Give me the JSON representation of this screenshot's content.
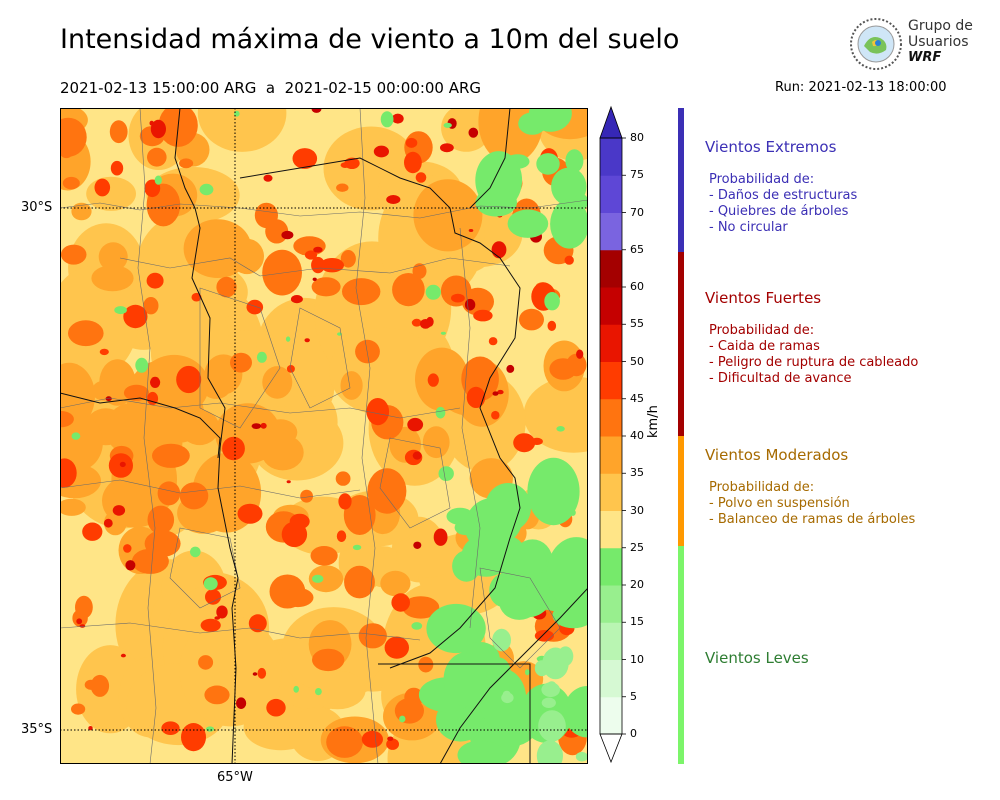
{
  "title": "Intensidad máxima de viento a 10m del suelo",
  "date_range": "2021-02-13 15:00:00 ARG  a  2021-02-15 00:00:00 ARG",
  "run": "Run: 2021-02-13 18:00:00",
  "logo": {
    "line1": "Grupo de",
    "line2": "Usuarios",
    "line3": "WRF"
  },
  "map": {
    "lat_labels": [
      "30°S",
      "35°S"
    ],
    "lon_labels": [
      "65°W"
    ]
  },
  "colorbar": {
    "unit": "km/h",
    "levels": [
      "0",
      "5",
      "10",
      "15",
      "20",
      "25",
      "30",
      "35",
      "40",
      "45",
      "50",
      "55",
      "60",
      "65",
      "70",
      "75",
      "80"
    ],
    "colors": [
      "#edfded",
      "#d6f9d3",
      "#b9f5b2",
      "#98ef8e",
      "#76ea6b",
      "#ffe587",
      "#ffc54d",
      "#ffa42a",
      "#ff7410",
      "#ff3c00",
      "#e91500",
      "#c50000",
      "#a40000",
      "#7a64e0",
      "#5e47d6",
      "#4a38c8",
      "#3627b6"
    ]
  },
  "categories": [
    {
      "name": "Vientos Extremos",
      "color": "#3b2fb5",
      "text_color": "#3b2fb5",
      "lines": [
        "Probabilidad de:",
        "- Daños de estructuras",
        "- Quiebres de árboles",
        "- No circular"
      ]
    },
    {
      "name": "Vientos Fuertes",
      "color": "#a30000",
      "text_color": "#a30000",
      "lines": [
        "Probabilidad de:",
        "- Caida de ramas",
        "- Peligro de ruptura de cableado",
        "- Dificultad de avance"
      ]
    },
    {
      "name": "Vientos Moderados",
      "color": "#ff9900",
      "text_color": "#a66a00",
      "lines": [
        "Probabilidad de:",
        "- Polvo en suspensión",
        "- Balanceo de ramas de árboles"
      ]
    },
    {
      "name": "Vientos Leves",
      "color": "#7cf56a",
      "text_color": "#2e7d32",
      "lines": []
    }
  ]
}
